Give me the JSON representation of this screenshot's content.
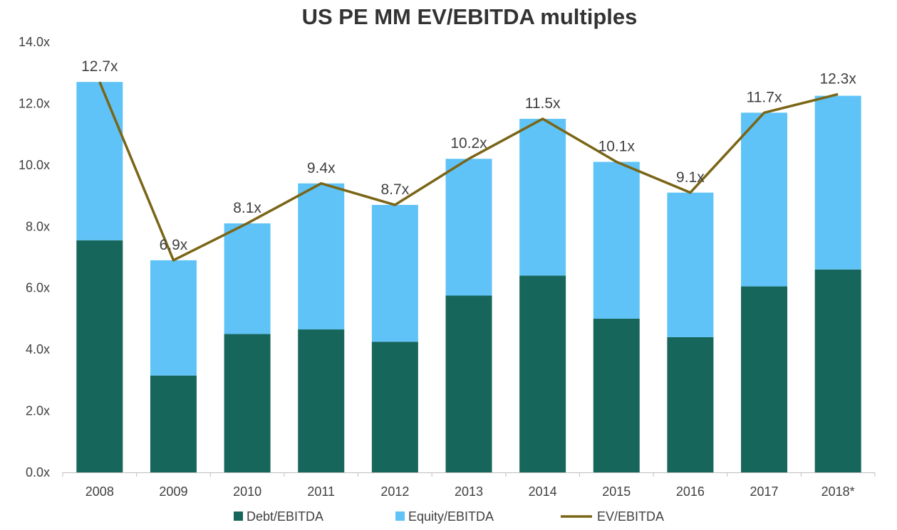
{
  "chart_data": {
    "type": "bar",
    "stacked": true,
    "title": "US PE MM EV/EBITDA multiples",
    "xlabel": "",
    "ylabel": "",
    "ylim": [
      0,
      14
    ],
    "yticks": [
      "0.0x",
      "2.0x",
      "4.0x",
      "6.0x",
      "8.0x",
      "10.0x",
      "12.0x",
      "14.0x"
    ],
    "ytick_values": [
      0,
      2,
      4,
      6,
      8,
      10,
      12,
      14
    ],
    "grid": false,
    "legend_position": "bottom",
    "categories": [
      "2008",
      "2009",
      "2010",
      "2011",
      "2012",
      "2013",
      "2014",
      "2015",
      "2016",
      "2017",
      "2018*"
    ],
    "series": [
      {
        "name": "Debt/EBITDA",
        "kind": "bar",
        "color": "#17665C",
        "values": [
          7.55,
          3.15,
          4.5,
          4.65,
          4.25,
          5.75,
          6.4,
          5.0,
          4.4,
          6.05,
          6.6
        ]
      },
      {
        "name": "Equity/EBITDA",
        "kind": "bar",
        "color": "#5FC3F7",
        "values": [
          5.15,
          3.75,
          3.6,
          4.75,
          4.45,
          4.45,
          5.1,
          5.1,
          4.7,
          5.65,
          5.65
        ]
      },
      {
        "name": "EV/EBITDA",
        "kind": "line",
        "color": "#7A6516",
        "values": [
          12.7,
          6.9,
          8.1,
          9.4,
          8.7,
          10.2,
          11.5,
          10.1,
          9.1,
          11.7,
          12.3
        ],
        "labels": [
          "12.7x",
          "6.9x",
          "8.1x",
          "9.4x",
          "8.7x",
          "10.2x",
          "11.5x",
          "10.1x",
          "9.1x",
          "11.7x",
          "12.3x"
        ]
      }
    ]
  }
}
